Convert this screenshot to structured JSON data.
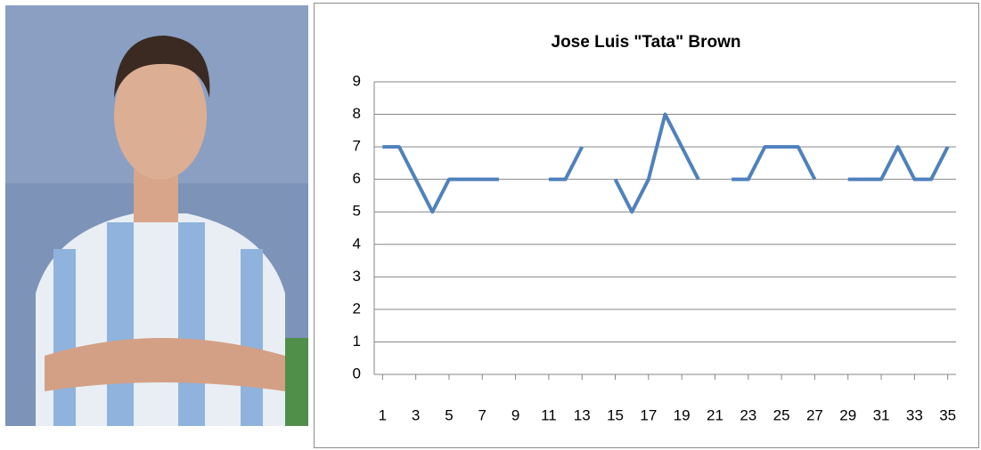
{
  "chart_data": {
    "type": "line",
    "title": "Jose Luis \"Tata\" Brown",
    "x": [
      1,
      2,
      3,
      4,
      5,
      6,
      7,
      8,
      9,
      10,
      11,
      12,
      13,
      14,
      15,
      16,
      17,
      18,
      19,
      20,
      21,
      22,
      23,
      24,
      25,
      26,
      27,
      28,
      29,
      30,
      31,
      32,
      33,
      34,
      35
    ],
    "series": [
      {
        "name": "Jose Luis \"Tata\" Brown",
        "color": "#4f81bd",
        "values": [
          7,
          7,
          6,
          5,
          6,
          6,
          6,
          6,
          null,
          null,
          6,
          6,
          7,
          null,
          6,
          5,
          6,
          8,
          7,
          6,
          null,
          6,
          6,
          7,
          7,
          7,
          6,
          null,
          6,
          6,
          6,
          7,
          6,
          6,
          7
        ]
      }
    ],
    "xlim": [
      0.5,
      35.5
    ],
    "xticks": [
      1,
      3,
      5,
      7,
      9,
      11,
      13,
      15,
      17,
      19,
      21,
      23,
      25,
      27,
      29,
      31,
      33,
      35
    ],
    "ylim": [
      0,
      9
    ],
    "yticks": [
      0,
      1,
      2,
      3,
      4,
      5,
      6,
      7,
      8,
      9
    ],
    "grid": true
  }
}
